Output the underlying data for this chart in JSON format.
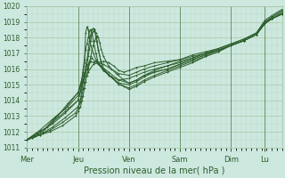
{
  "title": "",
  "xlabel": "Pression niveau de la mer( hPa )",
  "ylabel": "",
  "bg_color": "#cde8df",
  "plot_bg_color": "#cde8df",
  "line_color": "#2d5e2d",
  "grid_color_major": "#a8c8a8",
  "grid_color_minor": "#b8d8c0",
  "ylim": [
    1011,
    1020
  ],
  "yticks": [
    1011,
    1012,
    1013,
    1014,
    1015,
    1016,
    1017,
    1018,
    1019,
    1020
  ],
  "x_day_labels": [
    "Mer",
    "Jeu",
    "Ven",
    "Sam",
    "Dim",
    "Lu"
  ],
  "x_day_positions": [
    0.0,
    0.2,
    0.4,
    0.6,
    0.8,
    0.933
  ],
  "xlim": [
    0,
    1.0
  ],
  "lines": [
    [
      0.0,
      1011.5,
      0.05,
      1012.0,
      0.1,
      1012.5,
      0.15,
      1013.2,
      0.2,
      1014.0,
      0.22,
      1015.2,
      0.24,
      1015.8,
      0.26,
      1016.3,
      0.28,
      1016.4,
      0.3,
      1016.5,
      0.32,
      1016.4,
      0.34,
      1016.2,
      0.36,
      1015.9,
      0.38,
      1015.8,
      0.4,
      1015.9,
      0.43,
      1016.1,
      0.46,
      1016.2,
      0.5,
      1016.4,
      0.55,
      1016.5,
      0.6,
      1016.6,
      0.65,
      1016.8,
      0.7,
      1017.0,
      0.75,
      1017.2,
      0.8,
      1017.5,
      0.85,
      1017.8,
      0.9,
      1018.2,
      0.933,
      1019.0,
      0.96,
      1019.3,
      1.0,
      1019.7
    ],
    [
      0.0,
      1011.5,
      0.05,
      1012.1,
      0.1,
      1012.8,
      0.15,
      1013.5,
      0.2,
      1014.5,
      0.22,
      1015.6,
      0.24,
      1016.1,
      0.25,
      1016.5,
      0.26,
      1016.4,
      0.27,
      1016.5,
      0.28,
      1016.4,
      0.3,
      1016.3,
      0.33,
      1016.0,
      0.36,
      1015.7,
      0.4,
      1015.6,
      0.43,
      1015.8,
      0.46,
      1016.0,
      0.5,
      1016.2,
      0.55,
      1016.4,
      0.6,
      1016.6,
      0.65,
      1016.9,
      0.7,
      1017.1,
      0.75,
      1017.3,
      0.8,
      1017.6,
      0.85,
      1017.9,
      0.9,
      1018.3,
      0.933,
      1019.1,
      0.96,
      1019.4,
      1.0,
      1019.8
    ],
    [
      0.0,
      1011.5,
      0.04,
      1011.9,
      0.08,
      1012.3,
      0.12,
      1013.0,
      0.16,
      1013.8,
      0.2,
      1014.5,
      0.22,
      1015.3,
      0.235,
      1016.0,
      0.245,
      1016.5,
      0.255,
      1016.7,
      0.265,
      1016.5,
      0.28,
      1016.3,
      0.3,
      1015.9,
      0.33,
      1015.5,
      0.36,
      1015.3,
      0.4,
      1015.4,
      0.43,
      1015.6,
      0.46,
      1015.8,
      0.5,
      1016.0,
      0.55,
      1016.2,
      0.6,
      1016.5,
      0.65,
      1016.7,
      0.7,
      1017.0,
      0.75,
      1017.2,
      0.8,
      1017.5,
      0.85,
      1017.8,
      0.9,
      1018.2,
      0.933,
      1018.9,
      0.96,
      1019.2,
      1.0,
      1019.6
    ],
    [
      0.0,
      1011.5,
      0.03,
      1011.8,
      0.07,
      1012.2,
      0.11,
      1012.9,
      0.16,
      1013.6,
      0.2,
      1014.3,
      0.21,
      1015.0,
      0.22,
      1015.8,
      0.225,
      1016.4,
      0.23,
      1018.3,
      0.235,
      1018.7,
      0.24,
      1018.5,
      0.245,
      1018.0,
      0.25,
      1017.5,
      0.26,
      1017.0,
      0.27,
      1016.6,
      0.29,
      1016.2,
      0.32,
      1015.8,
      0.36,
      1015.3,
      0.4,
      1015.1,
      0.43,
      1015.3,
      0.46,
      1015.6,
      0.5,
      1015.8,
      0.55,
      1016.0,
      0.6,
      1016.3,
      0.65,
      1016.6,
      0.7,
      1016.9,
      0.75,
      1017.2,
      0.8,
      1017.5,
      0.85,
      1017.8,
      0.9,
      1018.2,
      0.933,
      1018.9,
      0.96,
      1019.2,
      1.0,
      1019.5
    ],
    [
      0.0,
      1011.5,
      0.03,
      1011.7,
      0.06,
      1012.0,
      0.1,
      1012.6,
      0.15,
      1013.3,
      0.2,
      1014.0,
      0.21,
      1014.6,
      0.215,
      1015.2,
      0.22,
      1016.0,
      0.225,
      1016.6,
      0.23,
      1017.2,
      0.235,
      1017.6,
      0.24,
      1018.0,
      0.245,
      1018.4,
      0.25,
      1018.5,
      0.255,
      1018.3,
      0.26,
      1017.8,
      0.27,
      1017.0,
      0.28,
      1016.4,
      0.3,
      1015.9,
      0.33,
      1015.5,
      0.36,
      1015.1,
      0.4,
      1015.0,
      0.43,
      1015.2,
      0.46,
      1015.5,
      0.5,
      1015.8,
      0.55,
      1016.0,
      0.6,
      1016.3,
      0.65,
      1016.6,
      0.7,
      1016.9,
      0.75,
      1017.2,
      0.8,
      1017.5,
      0.85,
      1017.8,
      0.9,
      1018.2,
      0.933,
      1018.9,
      0.96,
      1019.2,
      1.0,
      1019.5
    ],
    [
      0.0,
      1011.5,
      0.03,
      1011.7,
      0.06,
      1011.9,
      0.1,
      1012.3,
      0.15,
      1012.9,
      0.2,
      1013.6,
      0.21,
      1014.1,
      0.215,
      1014.7,
      0.22,
      1015.2,
      0.225,
      1015.7,
      0.23,
      1016.2,
      0.235,
      1016.6,
      0.24,
      1017.2,
      0.245,
      1017.8,
      0.25,
      1018.2,
      0.255,
      1018.5,
      0.26,
      1018.6,
      0.265,
      1018.5,
      0.27,
      1018.0,
      0.28,
      1017.2,
      0.29,
      1016.5,
      0.3,
      1016.0,
      0.33,
      1015.5,
      0.36,
      1015.0,
      0.4,
      1014.8,
      0.43,
      1015.0,
      0.46,
      1015.3,
      0.5,
      1015.6,
      0.55,
      1015.9,
      0.6,
      1016.2,
      0.65,
      1016.5,
      0.7,
      1016.8,
      0.75,
      1017.1,
      0.8,
      1017.5,
      0.85,
      1017.8,
      0.9,
      1018.2,
      0.933,
      1018.9,
      0.96,
      1019.2,
      1.0,
      1019.5
    ],
    [
      0.0,
      1011.5,
      0.02,
      1011.6,
      0.05,
      1011.8,
      0.09,
      1012.1,
      0.14,
      1012.6,
      0.19,
      1013.2,
      0.2,
      1013.5,
      0.21,
      1013.9,
      0.215,
      1014.3,
      0.22,
      1014.7,
      0.225,
      1015.2,
      0.23,
      1015.8,
      0.235,
      1016.3,
      0.24,
      1016.8,
      0.245,
      1017.3,
      0.25,
      1017.8,
      0.255,
      1018.2,
      0.26,
      1018.4,
      0.265,
      1018.5,
      0.27,
      1018.3,
      0.275,
      1017.8,
      0.28,
      1017.2,
      0.29,
      1016.5,
      0.3,
      1016.0,
      0.32,
      1015.6,
      0.35,
      1015.2,
      0.38,
      1014.9,
      0.4,
      1014.7,
      0.43,
      1014.9,
      0.46,
      1015.2,
      0.5,
      1015.5,
      0.55,
      1015.8,
      0.6,
      1016.1,
      0.65,
      1016.4,
      0.7,
      1016.8,
      0.75,
      1017.1,
      0.8,
      1017.5,
      0.85,
      1017.8,
      0.9,
      1018.2,
      0.933,
      1018.9,
      0.96,
      1019.2,
      1.0,
      1019.5
    ],
    [
      0.0,
      1011.5,
      0.02,
      1011.6,
      0.05,
      1011.8,
      0.09,
      1012.0,
      0.14,
      1012.4,
      0.19,
      1013.0,
      0.2,
      1013.3,
      0.21,
      1013.6,
      0.215,
      1014.0,
      0.22,
      1014.3,
      0.225,
      1014.8,
      0.23,
      1015.2,
      0.235,
      1015.6,
      0.24,
      1016.0,
      0.245,
      1016.4,
      0.25,
      1016.8,
      0.255,
      1017.2,
      0.26,
      1017.5,
      0.265,
      1017.8,
      0.27,
      1018.0,
      0.275,
      1018.1,
      0.28,
      1018.0,
      0.285,
      1017.7,
      0.29,
      1017.3,
      0.3,
      1016.8,
      0.32,
      1016.2,
      0.35,
      1015.7,
      0.38,
      1015.3,
      0.4,
      1015.1,
      0.43,
      1015.3,
      0.46,
      1015.6,
      0.5,
      1015.9,
      0.55,
      1016.2,
      0.6,
      1016.4,
      0.65,
      1016.7,
      0.7,
      1017.0,
      0.75,
      1017.3,
      0.8,
      1017.6,
      0.85,
      1017.9,
      0.9,
      1018.3,
      0.933,
      1019.0,
      0.96,
      1019.3,
      1.0,
      1019.7
    ]
  ]
}
